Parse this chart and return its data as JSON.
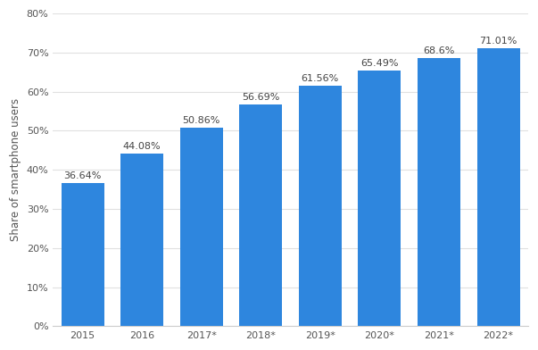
{
  "categories": [
    "2015",
    "2016",
    "2017*",
    "2018*",
    "2019*",
    "2020*",
    "2021*",
    "2022*"
  ],
  "values": [
    36.64,
    44.08,
    50.86,
    56.69,
    61.56,
    65.49,
    68.6,
    71.01
  ],
  "labels": [
    "36.64%",
    "44.08%",
    "50.86%",
    "56.69%",
    "61.56%",
    "65.49%",
    "68.6%",
    "71.01%"
  ],
  "bar_color": "#2e86de",
  "background_color": "#ffffff",
  "plot_background_color": "#ffffff",
  "ylabel": "Share of smartphone users",
  "ylim": [
    0,
    80
  ],
  "yticks": [
    0,
    10,
    20,
    30,
    40,
    50,
    60,
    70,
    80
  ],
  "ytick_labels": [
    "0%",
    "10%",
    "20%",
    "30%",
    "40%",
    "50%",
    "60%",
    "70%",
    "80%"
  ],
  "grid_color": "#e0e0e0",
  "label_fontsize": 8,
  "axis_fontsize": 8,
  "ylabel_fontsize": 8.5,
  "bar_width": 0.72
}
